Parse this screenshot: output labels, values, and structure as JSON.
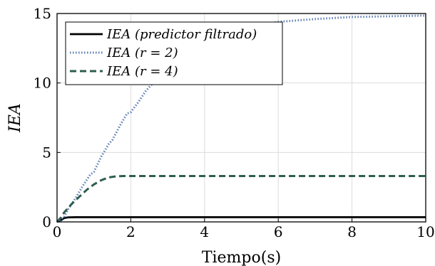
{
  "chart_data": {
    "type": "line",
    "xlabel": "Tiempo(s)",
    "ylabel": "IEA",
    "xlim": [
      0,
      10
    ],
    "ylim": [
      0,
      15
    ],
    "xticks": [
      0,
      2,
      4,
      6,
      8,
      10
    ],
    "yticks": [
      0,
      5,
      10,
      15
    ],
    "grid": true,
    "legend_position": "top-left",
    "series": [
      {
        "name": "IEA (predictor filtrado)",
        "color": "#000000",
        "style": "solid",
        "x": [
          0,
          0.1,
          0.2,
          0.3,
          0.5,
          1,
          2,
          4,
          6,
          8,
          10
        ],
        "y": [
          0,
          0.12,
          0.28,
          0.33,
          0.34,
          0.34,
          0.34,
          0.34,
          0.34,
          0.34,
          0.34
        ]
      },
      {
        "name": "IEA (r = 2)",
        "color": "#5b7bb4",
        "style": "dotted",
        "x": [
          0,
          0.1,
          0.2,
          0.3,
          0.5,
          0.7,
          0.9,
          1.0,
          1.2,
          1.4,
          1.5,
          1.7,
          1.9,
          2.0,
          2.2,
          2.4,
          2.6,
          2.8,
          3.0,
          3.5,
          4.0,
          4.5,
          5.0,
          6.0,
          7.0,
          8.0,
          9.0,
          10.0
        ],
        "y": [
          0,
          0.15,
          0.4,
          0.9,
          1.7,
          2.6,
          3.4,
          3.6,
          4.7,
          5.6,
          5.9,
          6.9,
          7.8,
          7.9,
          8.6,
          9.4,
          10.0,
          10.5,
          11.1,
          12.1,
          12.9,
          13.5,
          13.9,
          14.4,
          14.6,
          14.75,
          14.8,
          14.85
        ]
      },
      {
        "name": "IEA (r = 4)",
        "color": "#2e5e4e",
        "style": "dashed",
        "x": [
          0,
          0.1,
          0.2,
          0.4,
          0.6,
          0.8,
          1.0,
          1.2,
          1.4,
          1.6,
          1.8,
          2.0,
          3.0,
          4.0,
          6.0,
          8.0,
          10.0
        ],
        "y": [
          0,
          0.3,
          0.7,
          1.3,
          1.8,
          2.3,
          2.7,
          3.0,
          3.2,
          3.28,
          3.3,
          3.3,
          3.3,
          3.3,
          3.3,
          3.3,
          3.3
        ]
      }
    ]
  }
}
